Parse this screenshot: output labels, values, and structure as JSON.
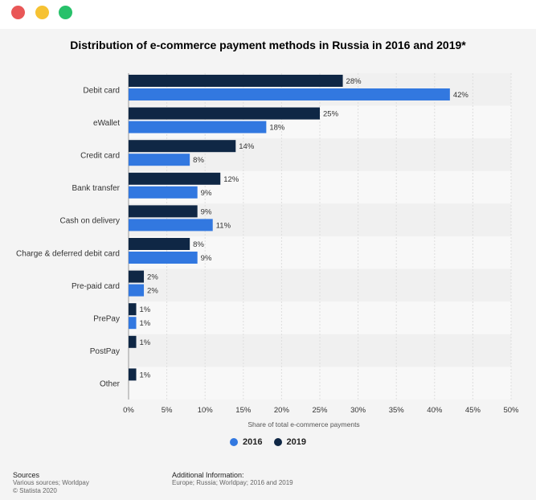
{
  "window": {
    "dots": [
      "#e95757",
      "#f6c233",
      "#27c16a"
    ]
  },
  "chart_data": {
    "type": "bar",
    "orientation": "horizontal",
    "title": "Distribution of e-commerce payment methods in Russia in 2016 and 2019*",
    "categories": [
      "Debit card",
      "eWallet",
      "Credit card",
      "Bank transfer",
      "Cash on delivery",
      "Charge & deferred debit card",
      "Pre-paid card",
      "PrePay",
      "PostPay",
      "Other"
    ],
    "series": [
      {
        "name": "2019",
        "color": "#0f2745",
        "values": [
          28,
          25,
          14,
          12,
          9,
          8,
          2,
          1,
          1,
          1
        ]
      },
      {
        "name": "2016",
        "color": "#3278e0",
        "values": [
          42,
          18,
          8,
          9,
          11,
          9,
          2,
          1,
          null,
          null
        ]
      }
    ],
    "value_labels": {
      "2019": [
        "28%",
        "25%",
        "14%",
        "12%",
        "9%",
        "8%",
        "2%",
        "1%",
        "1%",
        "1%"
      ],
      "2016": [
        "42%",
        "18%",
        "8%",
        "9%",
        "11%",
        "9%",
        "2%",
        "1%",
        "",
        ""
      ]
    },
    "xlim": [
      0,
      50
    ],
    "xticks": [
      "0%",
      "5%",
      "10%",
      "15%",
      "20%",
      "25%",
      "30%",
      "35%",
      "40%",
      "45%",
      "50%"
    ],
    "xlabel": "Share of total e-commerce payments",
    "ylabel": "",
    "grid": true,
    "legend_position": "bottom"
  },
  "legend": [
    {
      "label": "2016",
      "color": "#3278e0"
    },
    {
      "label": "2019",
      "color": "#0f2745"
    }
  ],
  "footer": {
    "sources_title": "Sources",
    "sources_line1": "Various sources; Worldpay",
    "sources_line2": "© Statista 2020",
    "info_title": "Additional Information:",
    "info_line1": "Europe; Russia; Worldpay; 2016 and 2019"
  }
}
